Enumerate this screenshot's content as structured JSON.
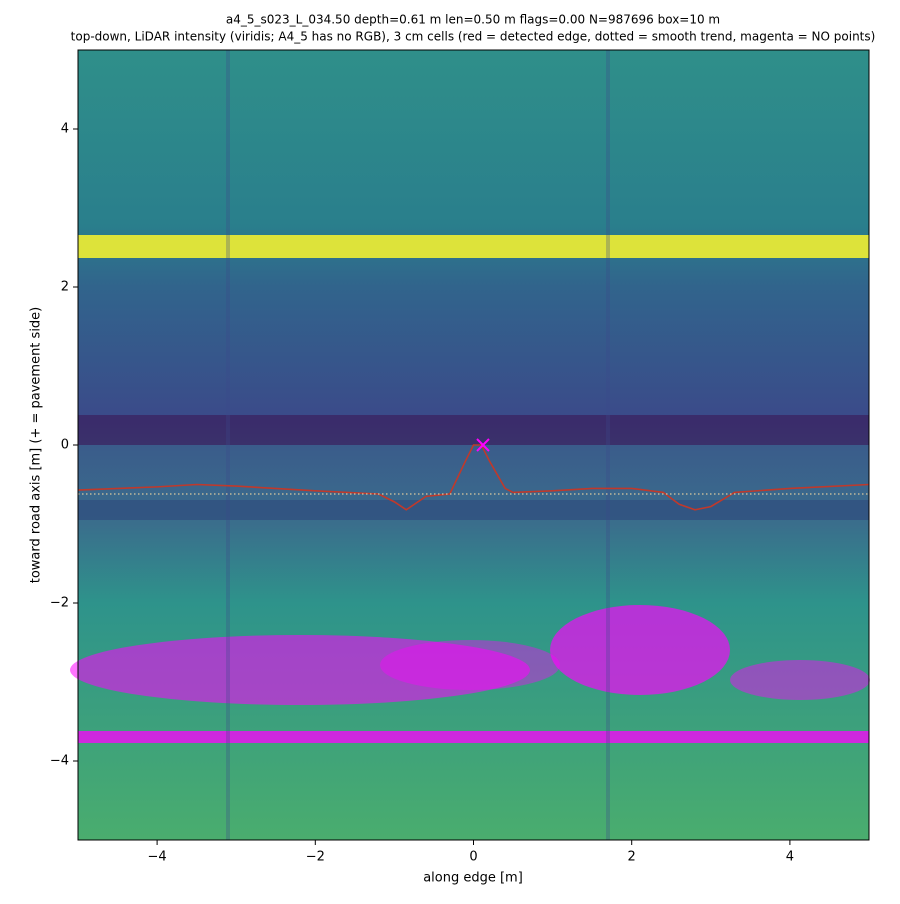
{
  "chart_data": {
    "type": "line",
    "title": "a4_5_s023_L_034.50  depth=0.61 m  len=0.50 m  flags=0.00  N=987696  box=10 m",
    "subtitle": "top-down, LiDAR intensity (viridis; A4_5 has no RGB), 3 cm cells   (red = detected edge, dotted = smooth trend, magenta = NO points)",
    "x_label": "along edge [m]",
    "y_label": "toward road axis [m]  (+ = pavement side)",
    "xlim": [
      -5,
      5
    ],
    "ylim": [
      -5,
      5
    ],
    "xticks": [
      {
        "value": -4,
        "label": "−4"
      },
      {
        "value": -2,
        "label": "−2"
      },
      0,
      2,
      4
    ],
    "yticks": [
      {
        "value": -4,
        "label": "−4"
      },
      {
        "value": -2,
        "label": "−2"
      },
      0,
      2,
      4
    ],
    "series": [
      {
        "name": "detected edge",
        "color": "#c0392b",
        "style": "solid",
        "x": [
          -5,
          -4,
          -3.5,
          -3,
          -2,
          -1.2,
          -1,
          -0.85,
          -0.6,
          -0.3,
          -0.1,
          0,
          0.1,
          0.2,
          0.4,
          0.5,
          1,
          1.5,
          2,
          2.4,
          2.6,
          2.8,
          3,
          3.3,
          4,
          5
        ],
        "values": [
          -0.57,
          -0.53,
          -0.5,
          -0.52,
          -0.58,
          -0.62,
          -0.72,
          -0.82,
          -0.65,
          -0.62,
          -0.2,
          0,
          0,
          -0.2,
          -0.55,
          -0.6,
          -0.58,
          -0.55,
          -0.55,
          -0.6,
          -0.75,
          -0.82,
          -0.78,
          -0.6,
          -0.55,
          -0.5
        ]
      },
      {
        "name": "smooth trend",
        "color": "#d9c9a0",
        "style": "dotted",
        "x": [
          -5,
          5
        ],
        "values": [
          -0.62,
          -0.62
        ]
      }
    ],
    "marker": {
      "x": 0.12,
      "y": 0,
      "color": "#ff00ff"
    }
  }
}
